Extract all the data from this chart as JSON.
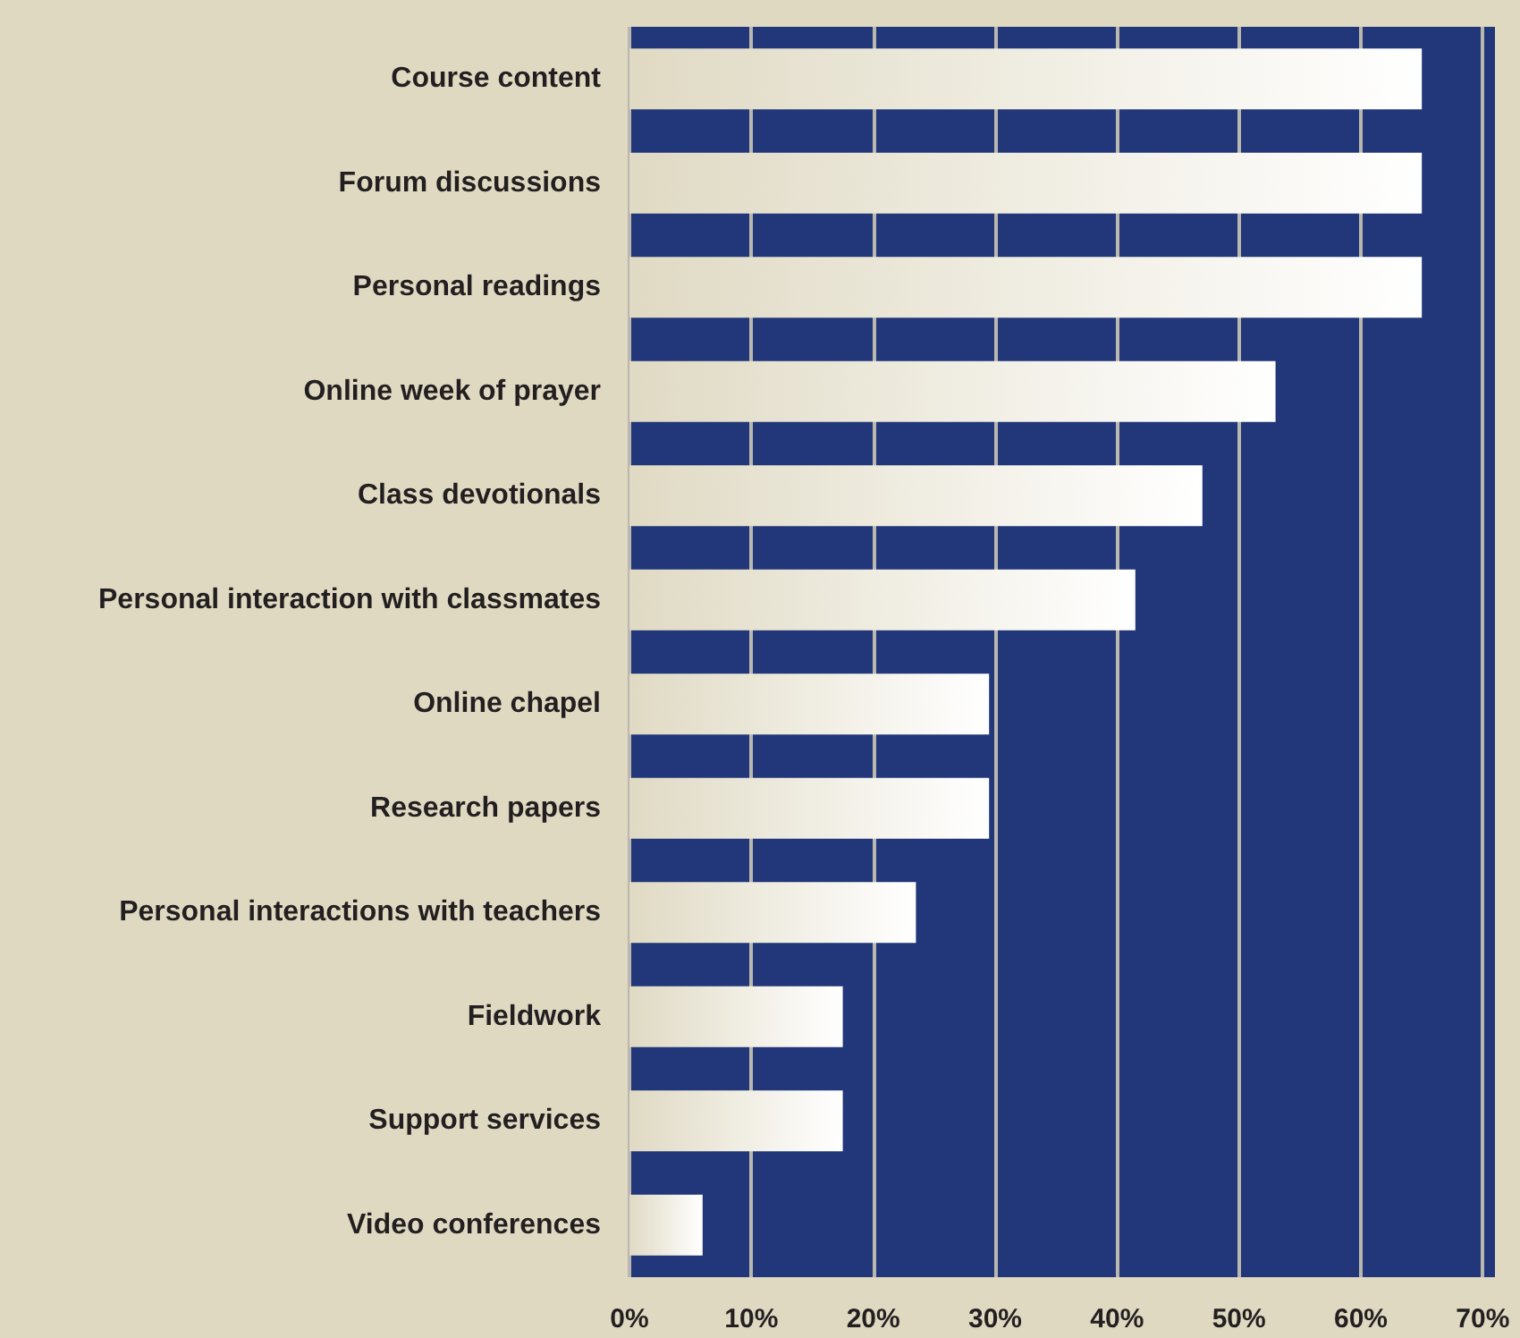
{
  "chart_data": {
    "type": "bar",
    "orientation": "horizontal",
    "categories": [
      "Course content",
      "Forum discussions",
      "Personal readings",
      "Online week of prayer",
      "Class devotionals",
      "Personal interaction with classmates",
      "Online chapel",
      "Research papers",
      "Personal interactions with teachers",
      "Fieldwork",
      "Support services",
      "Video conferences"
    ],
    "values": [
      65,
      65,
      65,
      53,
      47,
      41.5,
      29.5,
      29.5,
      23.5,
      17.5,
      17.5,
      6
    ],
    "color": "#ffffff",
    "xlim": [
      0,
      71
    ],
    "xticks": [
      {
        "value": 0,
        "label": "0%"
      },
      {
        "value": 10,
        "label": "10%"
      },
      {
        "value": 20,
        "label": "20%"
      },
      {
        "value": 30,
        "label": "30%"
      },
      {
        "value": 40,
        "label": "40%"
      },
      {
        "value": 50,
        "label": "50%"
      },
      {
        "value": 60,
        "label": "60%"
      },
      {
        "value": 70,
        "label": "70%"
      }
    ],
    "grid": "x"
  }
}
